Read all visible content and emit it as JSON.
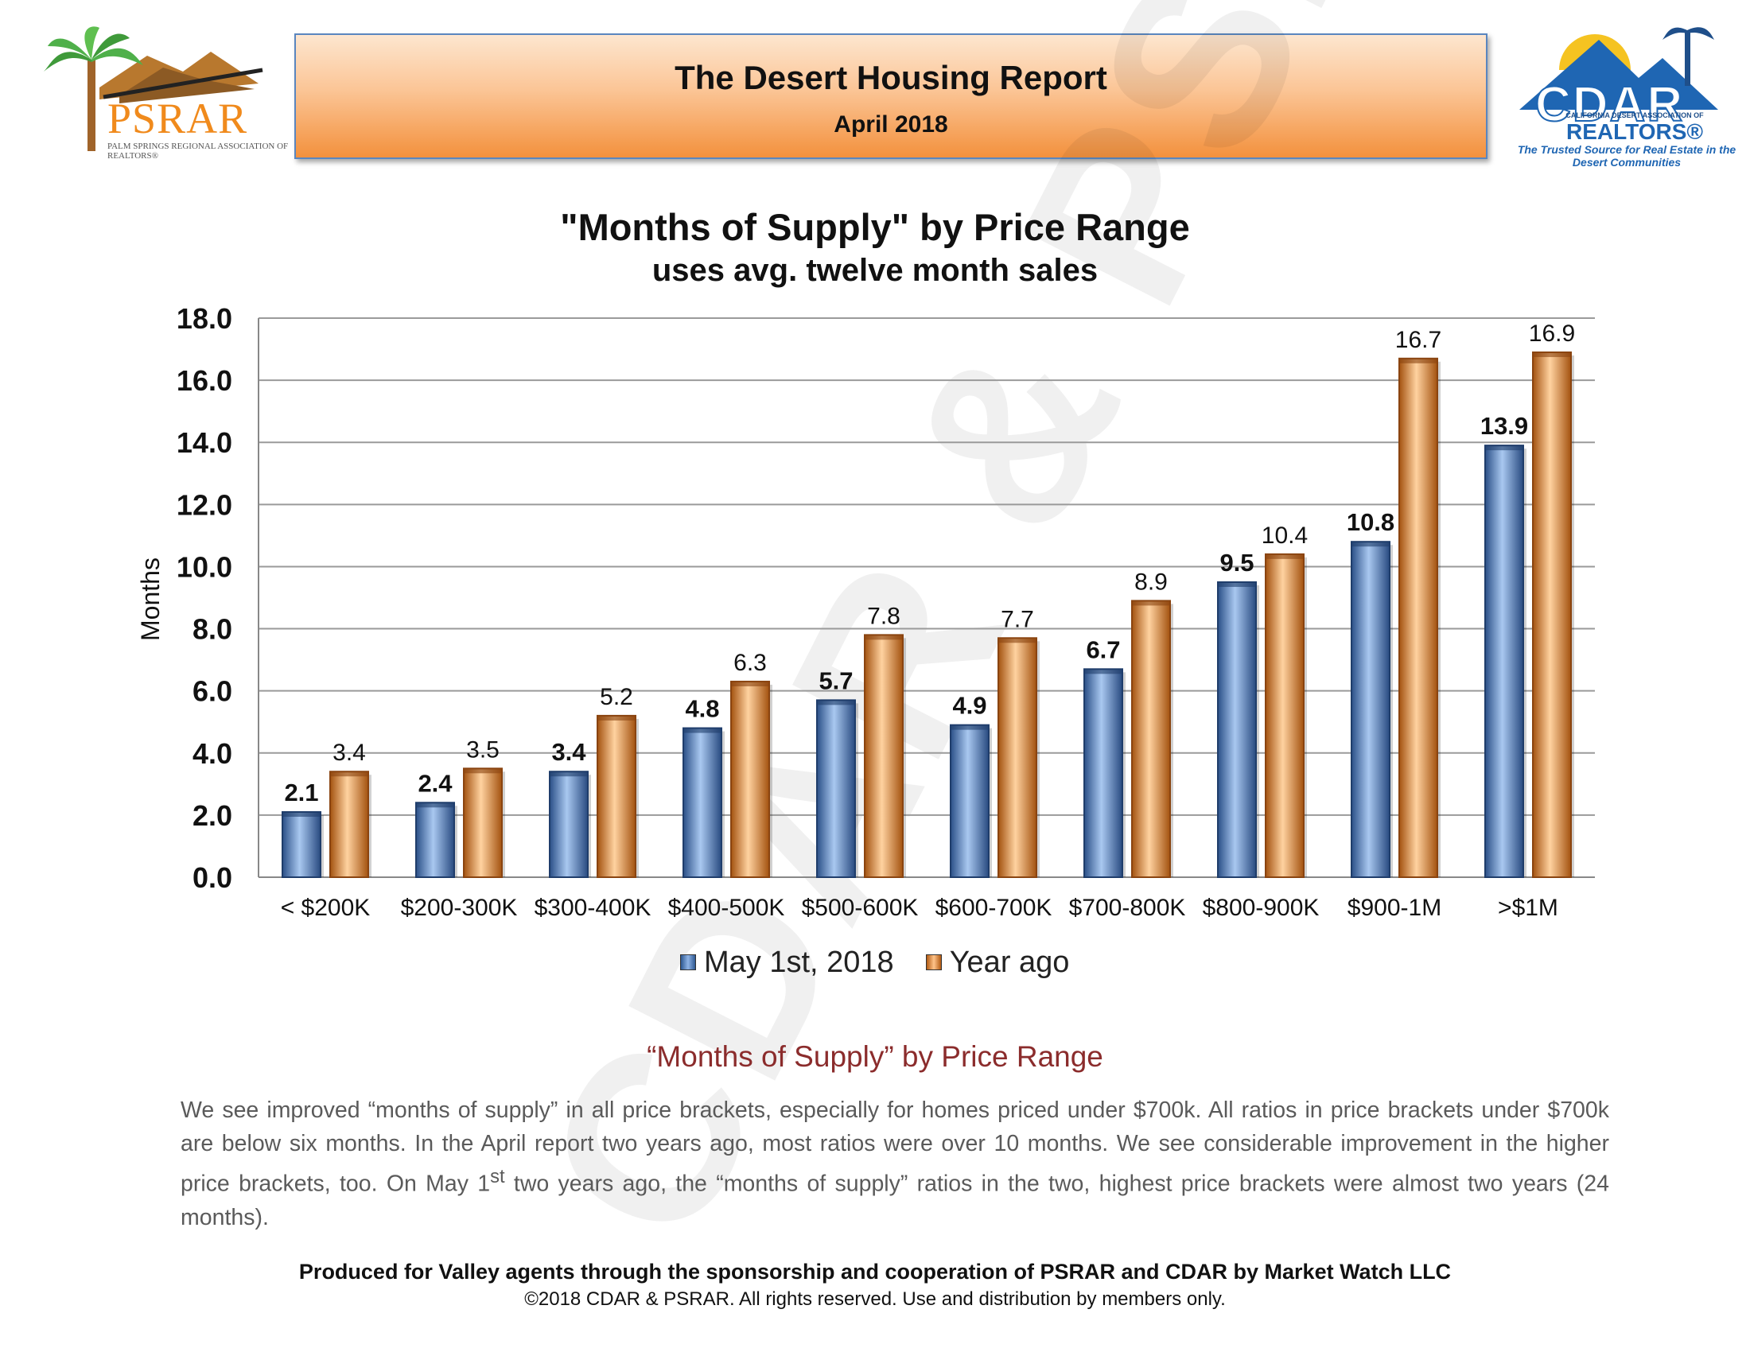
{
  "header": {
    "title": "The Desert Housing Report",
    "date": "April 2018",
    "psrar_logo": {
      "name": "PSRAR",
      "subtitle": "PALM SPRINGS REGIONAL ASSOCIATION of REALTORS®",
      "icon": "palm-tree-mountains-icon"
    },
    "cdar_logo": {
      "name": "CDAR",
      "association": "CALIFORNIA DESERT ASSOCIATION OF",
      "realtors": "REALTORS®",
      "tagline": "The Trusted Source for Real Estate in the Desert Communities",
      "icon": "mountain-sun-palm-icon"
    }
  },
  "watermark": "CDAR & PSRAR",
  "chart_data": {
    "type": "bar",
    "title": "\"Months of Supply\" by Price Range",
    "subtitle": "uses avg. twelve month sales",
    "ylabel": "Months",
    "xlabel": "",
    "ylim": [
      0,
      18
    ],
    "yticks": [
      "0.0",
      "2.0",
      "4.0",
      "6.0",
      "8.0",
      "10.0",
      "12.0",
      "14.0",
      "16.0",
      "18.0"
    ],
    "grid": true,
    "legend_position": "bottom",
    "categories": [
      "< $200K",
      "$200-300K",
      "$300-400K",
      "$400-500K",
      "$500-600K",
      "$600-700K",
      "$700-800K",
      "$800-900K",
      "$900-1M",
      ">$1M"
    ],
    "series": [
      {
        "name": "May 1st, 2018",
        "color": "#4a74b0",
        "values": [
          2.1,
          2.4,
          3.4,
          4.8,
          5.7,
          4.9,
          6.7,
          9.5,
          10.8,
          13.9
        ]
      },
      {
        "name": "Year ago",
        "color": "#e07a22",
        "values": [
          3.4,
          3.5,
          5.2,
          6.3,
          7.8,
          7.7,
          8.9,
          10.4,
          16.7,
          16.9
        ]
      }
    ]
  },
  "article": {
    "heading": "“Months of Supply” by Price Range",
    "body_part1": "We see improved “months of supply” in all price brackets, especially for homes priced under $700k. All ratios in price brackets under $700k are below six months. In the April report two years ago, most ratios were over 10 months. We see considerable improvement in the higher price brackets, too. On May 1",
    "body_sup": "st",
    "body_part2": " two years ago, the “months of supply” ratios in the two, highest price brackets were almost two years (24 months)."
  },
  "footer": {
    "line1": "Produced for Valley agents through the sponsorship and cooperation of PSRAR and CDAR by Market Watch LLC",
    "line2": "©2018 CDAR & PSRAR.  All rights reserved.  Use and distribution by members only."
  }
}
